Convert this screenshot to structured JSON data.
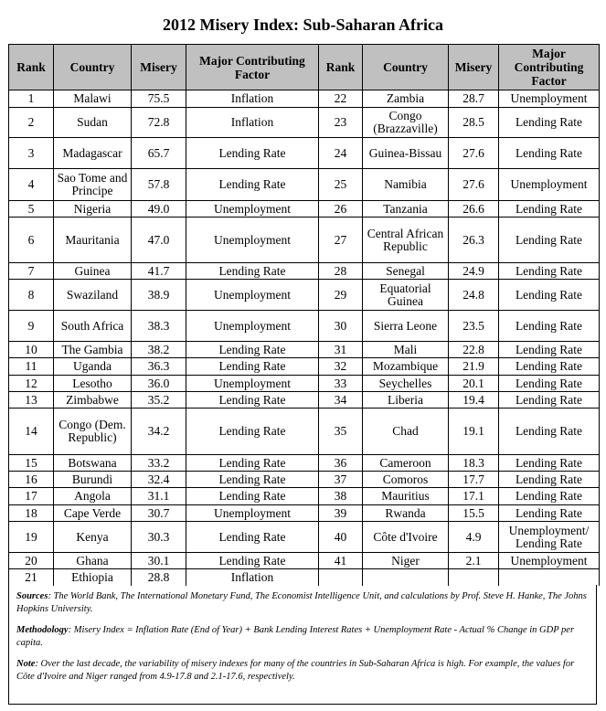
{
  "title": "2012 Misery Index: Sub-Saharan Africa",
  "headers": [
    "Rank",
    "Country",
    "Misery",
    "Major Contributing Factor",
    "Rank",
    "Country",
    "Misery",
    "Major Contributing Factor"
  ],
  "rows": [
    {
      "h": 19,
      "l": [
        "1",
        "Malawi",
        "75.5",
        "Inflation"
      ],
      "r": [
        "22",
        "Zambia",
        "28.7",
        "Unemployment"
      ]
    },
    {
      "h": 33,
      "l": [
        "2",
        "Sudan",
        "72.8",
        "Inflation"
      ],
      "r": [
        "23",
        "Congo (Brazzaville)",
        "28.5",
        "Lending Rate"
      ]
    },
    {
      "h": 34,
      "l": [
        "3",
        "Madagascar",
        "65.7",
        "Lending Rate"
      ],
      "r": [
        "24",
        "Guinea-Bissau",
        "27.6",
        "Lending Rate"
      ]
    },
    {
      "h": 35,
      "l": [
        "4",
        "Sao Tome and Principe",
        "57.8",
        "Lending Rate"
      ],
      "r": [
        "25",
        "Namibia",
        "27.6",
        "Unemployment"
      ]
    },
    {
      "h": 18,
      "l": [
        "5",
        "Nigeria",
        "49.0",
        "Unemployment"
      ],
      "r": [
        "26",
        "Tanzania",
        "26.6",
        "Lending Rate"
      ]
    },
    {
      "h": 50,
      "l": [
        "6",
        "Mauritania",
        "47.0",
        "Unemployment"
      ],
      "r": [
        "27",
        "Central African Republic",
        "26.3",
        "Lending Rate"
      ]
    },
    {
      "h": 18,
      "l": [
        "7",
        "Guinea",
        "41.7",
        "Lending Rate"
      ],
      "r": [
        "28",
        "Senegal",
        "24.9",
        "Lending Rate"
      ]
    },
    {
      "h": 34,
      "l": [
        "8",
        "Swaziland",
        "38.9",
        "Unemployment"
      ],
      "r": [
        "29",
        "Equatorial Guinea",
        "24.8",
        "Lending Rate"
      ]
    },
    {
      "h": 34,
      "l": [
        "9",
        "South Africa",
        "38.3",
        "Unemployment"
      ],
      "r": [
        "30",
        "Sierra Leone",
        "23.5",
        "Lending Rate"
      ]
    },
    {
      "h": 18,
      "l": [
        "10",
        "The Gambia",
        "38.2",
        "Lending Rate"
      ],
      "r": [
        "31",
        "Mali",
        "22.8",
        "Lending Rate"
      ]
    },
    {
      "h": 19,
      "l": [
        "11",
        "Uganda",
        "36.3",
        "Lending Rate"
      ],
      "r": [
        "32",
        "Mozambique",
        "21.9",
        "Lending Rate"
      ]
    },
    {
      "h": 18,
      "l": [
        "12",
        "Lesotho",
        "36.0",
        "Unemployment"
      ],
      "r": [
        "33",
        "Seychelles",
        "20.1",
        "Lending Rate"
      ]
    },
    {
      "h": 18,
      "l": [
        "13",
        "Zimbabwe",
        "35.2",
        "Lending Rate"
      ],
      "r": [
        "34",
        "Liberia",
        "19.4",
        "Lending Rate"
      ]
    },
    {
      "h": 51,
      "l": [
        "14",
        "Congo (Dem. Republic)",
        "34.2",
        "Lending Rate"
      ],
      "r": [
        "35",
        "Chad",
        "19.1",
        "Lending Rate"
      ]
    },
    {
      "h": 18,
      "l": [
        "15",
        "Botswana",
        "33.2",
        "Lending Rate"
      ],
      "r": [
        "36",
        "Cameroon",
        "18.3",
        "Lending Rate"
      ]
    },
    {
      "h": 18,
      "l": [
        "16",
        "Burundi",
        "32.4",
        "Lending Rate"
      ],
      "r": [
        "37",
        "Comoros",
        "17.7",
        "Lending Rate"
      ]
    },
    {
      "h": 19,
      "l": [
        "17",
        "Angola",
        "31.1",
        "Lending Rate"
      ],
      "r": [
        "38",
        "Mauritius",
        "17.1",
        "Lending Rate"
      ]
    },
    {
      "h": 18,
      "l": [
        "18",
        "Cape Verde",
        "30.7",
        "Unemployment"
      ],
      "r": [
        "39",
        "Rwanda",
        "15.5",
        "Lending Rate"
      ]
    },
    {
      "h": 34,
      "l": [
        "19",
        "Kenya",
        "30.3",
        "Lending Rate"
      ],
      "r": [
        "40",
        "Côte d'Ivoire",
        "4.9",
        "Unemployment/ Lending Rate"
      ]
    },
    {
      "h": 18,
      "l": [
        "20",
        "Ghana",
        "30.1",
        "Lending Rate"
      ],
      "r": [
        "41",
        "Niger",
        "2.1",
        "Unemployment"
      ]
    },
    {
      "h": 18,
      "l": [
        "21",
        "Ethiopia",
        "28.8",
        "Inflation"
      ],
      "r": [
        "",
        "",
        "",
        ""
      ]
    }
  ],
  "notes": {
    "sources_label": "Sources",
    "sources": ": The World Bank, The International Monetary Fund, The Economist Intelligence Unit, and calculations by Prof. Steve H. Hanke, The Johns Hopkins University.",
    "methodology_label": "Methodology",
    "methodology": ":  Misery Index = Inflation Rate (End of Year) + Bank Lending Interest Rates + Unemployment Rate - Actual % Change in GDP per capita.",
    "note_label": "Note",
    "note": ": Over the last decade, the variability of misery indexes for many of the countries in Sub-Saharan Africa is high. For example, the values for Côte d'Ivoire and Niger ranged from 4.9-17.8 and 2.1-17.6, respectively."
  }
}
